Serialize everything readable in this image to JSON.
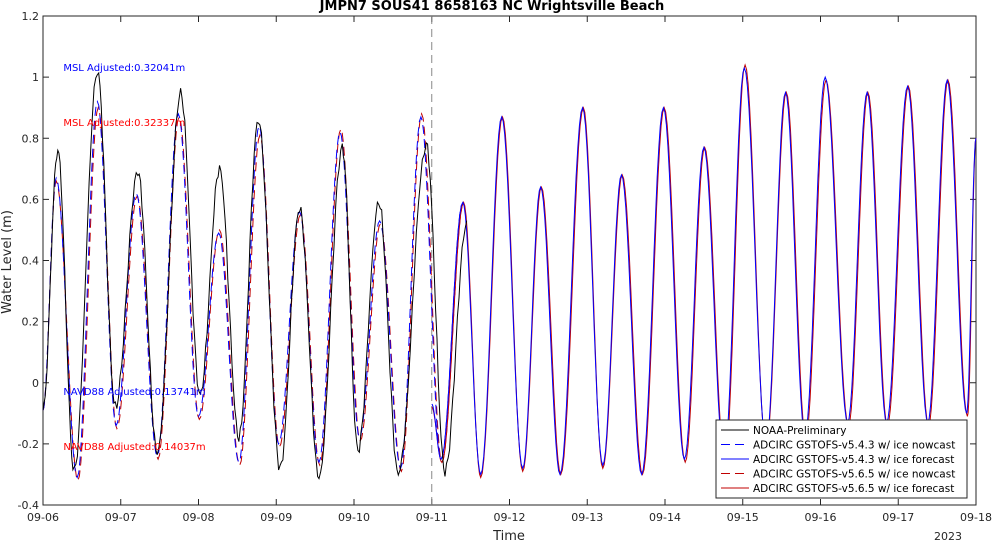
{
  "chart_data": {
    "type": "line",
    "title": "JMPN7 SOUS41 8658163 NC Wrightsville Beach",
    "xlabel": "Time",
    "ylabel": "Water Level (m)",
    "ylim": [
      -0.4,
      1.2
    ],
    "yticks": [
      "-0.4",
      "-0.2",
      "0",
      "0.2",
      "0.4",
      "0.6",
      "0.8",
      "1",
      "1.2"
    ],
    "xlim_days": [
      0,
      12
    ],
    "xticks": [
      "09-06",
      "09-07",
      "09-08",
      "09-09",
      "09-10",
      "09-11",
      "09-12",
      "09-13",
      "09-14",
      "09-15",
      "09-16",
      "09-17",
      "09-18"
    ],
    "year_label": "2023",
    "forecast_start": "09-11",
    "annotations": [
      {
        "text": "MSL Adjusted:0.32041m",
        "color": "#0000ff",
        "x_day": 0.3,
        "y": 1.02
      },
      {
        "text": "MSL Adjusted:0.32337m",
        "color": "#ff0000",
        "x_day": 0.3,
        "y": 0.84
      },
      {
        "text": "NAVD88 Adjusted:0.13741m",
        "color": "#0000ff",
        "x_day": 0.3,
        "y": -0.04
      },
      {
        "text": "NAVD88 Adjusted:0.14037m",
        "color": "#ff0000",
        "x_day": 0.3,
        "y": -0.22
      }
    ],
    "legend": {
      "position": "bottom-right",
      "entries": [
        {
          "name": "NOAA-Preliminary",
          "color": "#000000",
          "dash": "solid"
        },
        {
          "name": "ADCIRC GSTOFS-v5.4.3 w/ ice nowcast",
          "color": "#0000ff",
          "dash": "dashed"
        },
        {
          "name": "ADCIRC GSTOFS-v5.4.3 w/ ice forecast",
          "color": "#0000ff",
          "dash": "solid"
        },
        {
          "name": "ADCIRC GSTOFS-v5.6.5 w/ ice nowcast",
          "color": "#c00000",
          "dash": "dashed"
        },
        {
          "name": "ADCIRC GSTOFS-v5.6.5 w/ ice forecast",
          "color": "#c00000",
          "dash": "solid"
        }
      ]
    },
    "series": [
      {
        "name": "NOAA-Preliminary",
        "extrema": [
          [
            0.0,
            -0.09
          ],
          [
            0.19,
            0.76
          ],
          [
            0.4,
            -0.29
          ],
          [
            0.7,
            1.02
          ],
          [
            0.93,
            -0.08
          ],
          [
            1.22,
            0.69
          ],
          [
            1.47,
            -0.23
          ],
          [
            1.77,
            0.95
          ],
          [
            2.02,
            -0.04
          ],
          [
            2.27,
            0.7
          ],
          [
            2.52,
            -0.18
          ],
          [
            2.77,
            0.86
          ],
          [
            3.05,
            -0.28
          ],
          [
            3.3,
            0.57
          ],
          [
            3.55,
            -0.31
          ],
          [
            3.85,
            0.77
          ],
          [
            4.05,
            -0.22
          ],
          [
            4.32,
            0.59
          ],
          [
            4.57,
            -0.3
          ],
          [
            4.93,
            0.78
          ],
          [
            5.17,
            -0.29
          ],
          [
            5.45,
            0.52
          ]
        ]
      },
      {
        "name": "ADCIRC GSTOFS-v5.4.3 w/ ice nowcast",
        "extrema": [
          [
            0.0,
            -0.09
          ],
          [
            0.17,
            0.67
          ],
          [
            0.44,
            -0.31
          ],
          [
            0.7,
            0.92
          ],
          [
            0.94,
            -0.14
          ],
          [
            1.2,
            0.62
          ],
          [
            1.47,
            -0.24
          ],
          [
            1.74,
            0.88
          ],
          [
            2.0,
            -0.11
          ],
          [
            2.26,
            0.49
          ],
          [
            2.52,
            -0.26
          ],
          [
            2.78,
            0.84
          ],
          [
            3.03,
            -0.2
          ],
          [
            3.3,
            0.56
          ],
          [
            3.55,
            -0.26
          ],
          [
            3.82,
            0.82
          ],
          [
            4.07,
            -0.18
          ],
          [
            4.33,
            0.53
          ],
          [
            4.6,
            -0.28
          ],
          [
            4.86,
            0.87
          ],
          [
            5.12,
            -0.25
          ],
          [
            5.4,
            0.59
          ]
        ]
      },
      {
        "name": "ADCIRC GSTOFS-v5.4.3 w/ ice forecast",
        "extrema": [
          [
            5.0,
            -0.07
          ],
          [
            5.12,
            -0.25
          ],
          [
            5.4,
            0.59
          ],
          [
            5.63,
            -0.3
          ],
          [
            5.9,
            0.87
          ],
          [
            6.17,
            -0.28
          ],
          [
            6.4,
            0.64
          ],
          [
            6.65,
            -0.3
          ],
          [
            6.94,
            0.9
          ],
          [
            7.2,
            -0.27
          ],
          [
            7.44,
            0.68
          ],
          [
            7.7,
            -0.3
          ],
          [
            7.98,
            0.9
          ],
          [
            8.25,
            -0.25
          ],
          [
            8.5,
            0.77
          ],
          [
            8.76,
            -0.25
          ],
          [
            9.02,
            1.03
          ],
          [
            9.3,
            -0.2
          ],
          [
            9.55,
            0.95
          ],
          [
            9.8,
            -0.17
          ],
          [
            10.06,
            1.0
          ],
          [
            10.35,
            -0.13
          ],
          [
            10.6,
            0.95
          ],
          [
            10.85,
            -0.13
          ],
          [
            11.12,
            0.97
          ],
          [
            11.38,
            -0.13
          ],
          [
            11.63,
            0.99
          ],
          [
            11.88,
            -0.1
          ],
          [
            12.0,
            0.8
          ]
        ]
      },
      {
        "name": "ADCIRC GSTOFS-v5.6.5 w/ ice nowcast",
        "extrema": [
          [
            0.0,
            -0.09
          ],
          [
            0.17,
            0.66
          ],
          [
            0.45,
            -0.32
          ],
          [
            0.71,
            0.9
          ],
          [
            0.95,
            -0.15
          ],
          [
            1.21,
            0.61
          ],
          [
            1.48,
            -0.25
          ],
          [
            1.75,
            0.87
          ],
          [
            2.01,
            -0.12
          ],
          [
            2.27,
            0.5
          ],
          [
            2.53,
            -0.27
          ],
          [
            2.79,
            0.81
          ],
          [
            3.04,
            -0.21
          ],
          [
            3.31,
            0.55
          ],
          [
            3.56,
            -0.27
          ],
          [
            3.83,
            0.83
          ],
          [
            4.08,
            -0.19
          ],
          [
            4.34,
            0.52
          ],
          [
            4.61,
            -0.29
          ],
          [
            4.87,
            0.88
          ],
          [
            5.13,
            -0.26
          ],
          [
            5.41,
            0.59
          ]
        ]
      },
      {
        "name": "ADCIRC GSTOFS-v5.6.5 w/ ice forecast",
        "extrema": [
          [
            5.0,
            -0.08
          ],
          [
            5.13,
            -0.26
          ],
          [
            5.41,
            0.59
          ],
          [
            5.63,
            -0.31
          ],
          [
            5.91,
            0.87
          ],
          [
            6.17,
            -0.29
          ],
          [
            6.41,
            0.64
          ],
          [
            6.66,
            -0.3
          ],
          [
            6.95,
            0.9
          ],
          [
            7.2,
            -0.28
          ],
          [
            7.45,
            0.68
          ],
          [
            7.71,
            -0.3
          ],
          [
            7.99,
            0.9
          ],
          [
            8.26,
            -0.26
          ],
          [
            8.51,
            0.77
          ],
          [
            8.77,
            -0.26
          ],
          [
            9.03,
            1.04
          ],
          [
            9.3,
            -0.21
          ],
          [
            9.56,
            0.95
          ],
          [
            9.81,
            -0.18
          ],
          [
            10.07,
            0.99
          ],
          [
            10.36,
            -0.14
          ],
          [
            10.61,
            0.95
          ],
          [
            10.86,
            -0.14
          ],
          [
            11.13,
            0.97
          ],
          [
            11.39,
            -0.14
          ],
          [
            11.64,
            0.99
          ],
          [
            11.89,
            -0.11
          ],
          [
            12.0,
            0.8
          ]
        ]
      }
    ]
  }
}
